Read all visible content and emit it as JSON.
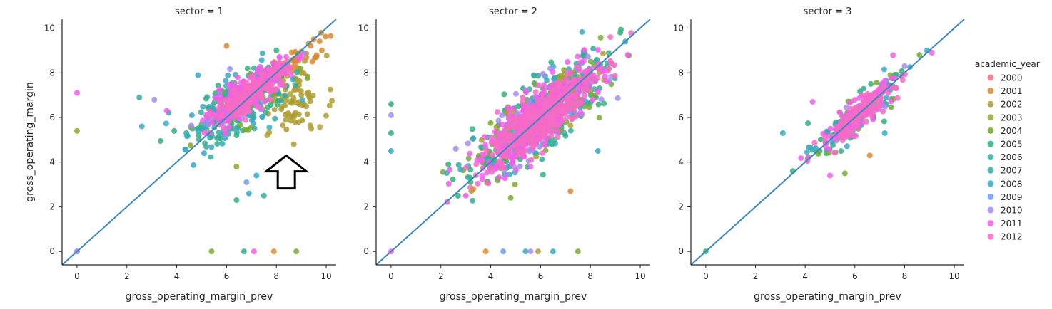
{
  "legend": {
    "title": "academic_year",
    "entries": [
      {
        "label": "2000",
        "color": "#f77189"
      },
      {
        "label": "2001",
        "color": "#dc8932"
      },
      {
        "label": "2002",
        "color": "#ae9d31"
      },
      {
        "label": "2003",
        "color": "#97a431"
      },
      {
        "label": "2004",
        "color": "#77ab31"
      },
      {
        "label": "2005",
        "color": "#33b07a"
      },
      {
        "label": "2006",
        "color": "#35ad9c"
      },
      {
        "label": "2007",
        "color": "#36ada4"
      },
      {
        "label": "2008",
        "color": "#38a9c5"
      },
      {
        "label": "2009",
        "color": "#6e9bf4"
      },
      {
        "label": "2010",
        "color": "#a48cf4"
      },
      {
        "label": "2011",
        "color": "#f45deb"
      },
      {
        "label": "2012",
        "color": "#f66bc6"
      }
    ]
  },
  "annotation": {
    "name": "up-arrow",
    "x": 8.4,
    "y": 4.1,
    "panel": 0
  },
  "chart_data": [
    {
      "type": "scatter",
      "title": "sector = 1",
      "xlabel": "gross_operating_margin_prev",
      "ylabel": "gross_operating_margin",
      "xlim": [
        -0.6,
        10.4
      ],
      "ylim": [
        -0.6,
        10.4
      ],
      "xticks": [
        "0",
        "2",
        "4",
        "6",
        "8",
        "10"
      ],
      "yticks": [
        "0",
        "2",
        "4",
        "6",
        "8",
        "10"
      ],
      "reference_line": "y = x",
      "reference_line_color": "#3a87c0",
      "clusters": [
        {
          "color": "#ae9d31",
          "cx": 8.6,
          "cy": 6.8,
          "sx": 0.7,
          "sy": 0.8,
          "rho": 0.3,
          "n": 90
        },
        {
          "color": "#dc8932",
          "cx": 8.7,
          "cy": 8.5,
          "sx": 0.8,
          "sy": 0.6,
          "rho": 0.9,
          "n": 35
        },
        {
          "color": "#33b07a",
          "cx": 6.6,
          "cy": 6.8,
          "sx": 1.0,
          "sy": 0.9,
          "rho": 0.6,
          "n": 80
        },
        {
          "color": "#35ad9c",
          "cx": 6.4,
          "cy": 6.5,
          "sx": 1.0,
          "sy": 0.9,
          "rho": 0.6,
          "n": 80
        },
        {
          "color": "#38a9c5",
          "cx": 6.2,
          "cy": 6.3,
          "sx": 1.1,
          "sy": 1.0,
          "rho": 0.55,
          "n": 70
        },
        {
          "color": "#77ab31",
          "cx": 6.8,
          "cy": 6.9,
          "sx": 0.9,
          "sy": 0.8,
          "rho": 0.7,
          "n": 50
        },
        {
          "color": "#a48cf4",
          "cx": 6.5,
          "cy": 6.7,
          "sx": 0.9,
          "sy": 0.8,
          "rho": 0.7,
          "n": 45
        },
        {
          "color": "#f45deb",
          "cx": 6.9,
          "cy": 7.1,
          "sx": 0.8,
          "sy": 0.7,
          "rho": 0.85,
          "n": 220
        },
        {
          "color": "#f66bc6",
          "cx": 7.0,
          "cy": 7.1,
          "sx": 0.7,
          "sy": 0.6,
          "rho": 0.85,
          "n": 200
        }
      ],
      "points": [
        {
          "x": 0,
          "y": 7.1,
          "color": "#f45deb"
        },
        {
          "x": 0,
          "y": 5.4,
          "color": "#97a431"
        },
        {
          "x": 0,
          "y": 0,
          "color": "#6e9bf4"
        },
        {
          "x": 0,
          "y": 0,
          "color": "#a48cf4"
        },
        {
          "x": 5.4,
          "y": 0,
          "color": "#77ab31"
        },
        {
          "x": 6.7,
          "y": 0,
          "color": "#33b07a"
        },
        {
          "x": 7.1,
          "y": 0,
          "color": "#f45deb"
        },
        {
          "x": 7.9,
          "y": 0,
          "color": "#dc8932"
        },
        {
          "x": 8.8,
          "y": 0,
          "color": "#77ab31"
        },
        {
          "x": 6.0,
          "y": 9.2,
          "color": "#dc8932"
        },
        {
          "x": 2.5,
          "y": 6.9,
          "color": "#35ad9c"
        },
        {
          "x": 3.1,
          "y": 6.8,
          "color": "#a48cf4"
        },
        {
          "x": 3.6,
          "y": 6.3,
          "color": "#f45deb"
        },
        {
          "x": 2.6,
          "y": 5.6,
          "color": "#38a9c5"
        },
        {
          "x": 3.9,
          "y": 5.4,
          "color": "#33b07a"
        },
        {
          "x": 6.9,
          "y": 2.6,
          "color": "#38a9c5"
        },
        {
          "x": 6.4,
          "y": 2.3,
          "color": "#33b07a"
        },
        {
          "x": 7.5,
          "y": 2.5,
          "color": "#35ad9c"
        },
        {
          "x": 6.8,
          "y": 3.1,
          "color": "#6e9bf4"
        },
        {
          "x": 7.2,
          "y": 3.4,
          "color": "#38a9c5"
        },
        {
          "x": 6.4,
          "y": 3.8,
          "color": "#97a431"
        },
        {
          "x": 5.1,
          "y": 4.4,
          "color": "#38a9c5"
        },
        {
          "x": 8.7,
          "y": 4.8,
          "color": "#ae9d31"
        },
        {
          "x": 8.4,
          "y": 4.2,
          "color": "#ae9d31"
        },
        {
          "x": 9.4,
          "y": 5.5,
          "color": "#ae9d31"
        },
        {
          "x": 9.8,
          "y": 9.8,
          "color": "#dc8932"
        },
        {
          "x": 9.5,
          "y": 9.5,
          "color": "#dc8932"
        },
        {
          "x": 9.0,
          "y": 7.0,
          "color": "#ae9d31"
        },
        {
          "x": 9.2,
          "y": 6.5,
          "color": "#ae9d31"
        },
        {
          "x": 8.9,
          "y": 5.8,
          "color": "#ae9d31"
        }
      ]
    },
    {
      "type": "scatter",
      "title": "sector = 2",
      "xlabel": "gross_operating_margin_prev",
      "ylabel": "",
      "xlim": [
        -0.6,
        10.4
      ],
      "ylim": [
        -0.6,
        10.4
      ],
      "xticks": [
        "0",
        "2",
        "4",
        "6",
        "8",
        "10"
      ],
      "yticks": [
        "0",
        "2",
        "4",
        "6",
        "8",
        "10"
      ],
      "reference_line": "y = x",
      "reference_line_color": "#3a87c0",
      "clusters": [
        {
          "color": "#33b07a",
          "cx": 6.0,
          "cy": 6.0,
          "sx": 1.3,
          "sy": 1.3,
          "rho": 0.8,
          "n": 150
        },
        {
          "color": "#77ab31",
          "cx": 6.0,
          "cy": 6.0,
          "sx": 1.3,
          "sy": 1.3,
          "rho": 0.8,
          "n": 120
        },
        {
          "color": "#35ad9c",
          "cx": 6.0,
          "cy": 6.0,
          "sx": 1.3,
          "sy": 1.3,
          "rho": 0.8,
          "n": 120
        },
        {
          "color": "#38a9c5",
          "cx": 6.1,
          "cy": 6.0,
          "sx": 1.3,
          "sy": 1.3,
          "rho": 0.8,
          "n": 100
        },
        {
          "color": "#ae9d31",
          "cx": 6.0,
          "cy": 6.0,
          "sx": 1.3,
          "sy": 1.2,
          "rho": 0.8,
          "n": 80
        },
        {
          "color": "#a48cf4",
          "cx": 6.0,
          "cy": 6.0,
          "sx": 1.3,
          "sy": 1.3,
          "rho": 0.8,
          "n": 80
        },
        {
          "color": "#f45deb",
          "cx": 6.0,
          "cy": 6.0,
          "sx": 1.2,
          "sy": 1.2,
          "rho": 0.85,
          "n": 320
        },
        {
          "color": "#f66bc6",
          "cx": 6.0,
          "cy": 6.0,
          "sx": 1.1,
          "sy": 1.1,
          "rho": 0.85,
          "n": 320
        }
      ],
      "points": [
        {
          "x": 0,
          "y": 6.6,
          "color": "#33b07a"
        },
        {
          "x": 0,
          "y": 6.1,
          "color": "#a48cf4"
        },
        {
          "x": 0,
          "y": 5.3,
          "color": "#33b07a"
        },
        {
          "x": 0,
          "y": 4.5,
          "color": "#38a9c5"
        },
        {
          "x": 0,
          "y": 0,
          "color": "#f45deb"
        },
        {
          "x": 3.8,
          "y": 0,
          "color": "#dc8932"
        },
        {
          "x": 4.5,
          "y": 0,
          "color": "#6e9bf4"
        },
        {
          "x": 5.4,
          "y": 0,
          "color": "#38a9c5"
        },
        {
          "x": 5.6,
          "y": 0,
          "color": "#a48cf4"
        },
        {
          "x": 5.9,
          "y": 0,
          "color": "#ae9d31"
        },
        {
          "x": 6.5,
          "y": 0,
          "color": "#38a9c5"
        },
        {
          "x": 7.5,
          "y": 0,
          "color": "#77ab31"
        },
        {
          "x": 7.2,
          "y": 2.7,
          "color": "#dc8932"
        },
        {
          "x": 4.8,
          "y": 2.4,
          "color": "#77ab31"
        },
        {
          "x": 3.0,
          "y": 2.5,
          "color": "#f45deb"
        },
        {
          "x": 3.3,
          "y": 2.8,
          "color": "#dc8932"
        },
        {
          "x": 2.3,
          "y": 3.9,
          "color": "#33b07a"
        },
        {
          "x": 2.6,
          "y": 4.6,
          "color": "#a48cf4"
        },
        {
          "x": 8.3,
          "y": 4.5,
          "color": "#38a9c5"
        },
        {
          "x": 9.4,
          "y": 9.4,
          "color": "#38a9c5"
        },
        {
          "x": 9.2,
          "y": 9.8,
          "color": "#33b07a"
        },
        {
          "x": 9.5,
          "y": 8.8,
          "color": "#f45deb"
        },
        {
          "x": 8.8,
          "y": 9.6,
          "color": "#f66bc6"
        }
      ]
    },
    {
      "type": "scatter",
      "title": "sector = 3",
      "xlabel": "gross_operating_margin_prev",
      "ylabel": "",
      "xlim": [
        -0.6,
        10.4
      ],
      "ylim": [
        -0.6,
        10.4
      ],
      "xticks": [
        "0",
        "2",
        "4",
        "6",
        "8",
        "10"
      ],
      "yticks": [
        "0",
        "2",
        "4",
        "6",
        "8",
        "10"
      ],
      "reference_line": "y = x",
      "reference_line_color": "#3a87c0",
      "clusters": [
        {
          "color": "#33b07a",
          "cx": 6.0,
          "cy": 6.0,
          "sx": 0.8,
          "sy": 0.8,
          "rho": 0.85,
          "n": 40
        },
        {
          "color": "#77ab31",
          "cx": 5.9,
          "cy": 5.9,
          "sx": 0.8,
          "sy": 0.8,
          "rho": 0.85,
          "n": 30
        },
        {
          "color": "#35ad9c",
          "cx": 6.0,
          "cy": 6.0,
          "sx": 0.8,
          "sy": 0.8,
          "rho": 0.85,
          "n": 35
        },
        {
          "color": "#38a9c5",
          "cx": 6.0,
          "cy": 6.0,
          "sx": 0.8,
          "sy": 0.8,
          "rho": 0.85,
          "n": 35
        },
        {
          "color": "#a48cf4",
          "cx": 6.0,
          "cy": 6.0,
          "sx": 0.8,
          "sy": 0.8,
          "rho": 0.85,
          "n": 25
        },
        {
          "color": "#f45deb",
          "cx": 6.1,
          "cy": 6.1,
          "sx": 0.75,
          "sy": 0.75,
          "rho": 0.9,
          "n": 110
        },
        {
          "color": "#f66bc6",
          "cx": 6.1,
          "cy": 6.1,
          "sx": 0.7,
          "sy": 0.7,
          "rho": 0.9,
          "n": 110
        }
      ],
      "points": [
        {
          "x": 0,
          "y": 0,
          "color": "#33b07a"
        },
        {
          "x": 3.1,
          "y": 5.3,
          "color": "#38a9c5"
        },
        {
          "x": 4.3,
          "y": 6.7,
          "color": "#f45deb"
        },
        {
          "x": 3.5,
          "y": 3.6,
          "color": "#33b07a"
        },
        {
          "x": 5.0,
          "y": 3.4,
          "color": "#f45deb"
        },
        {
          "x": 6.6,
          "y": 4.3,
          "color": "#dc8932"
        },
        {
          "x": 5.6,
          "y": 3.5,
          "color": "#77ab31"
        },
        {
          "x": 7.2,
          "y": 5.3,
          "color": "#38a9c5"
        },
        {
          "x": 8.9,
          "y": 9.0,
          "color": "#38a9c5"
        },
        {
          "x": 9.1,
          "y": 8.9,
          "color": "#f45deb"
        },
        {
          "x": 8.6,
          "y": 8.8,
          "color": "#77ab31"
        },
        {
          "x": 8.0,
          "y": 8.3,
          "color": "#a48cf4"
        }
      ]
    }
  ]
}
